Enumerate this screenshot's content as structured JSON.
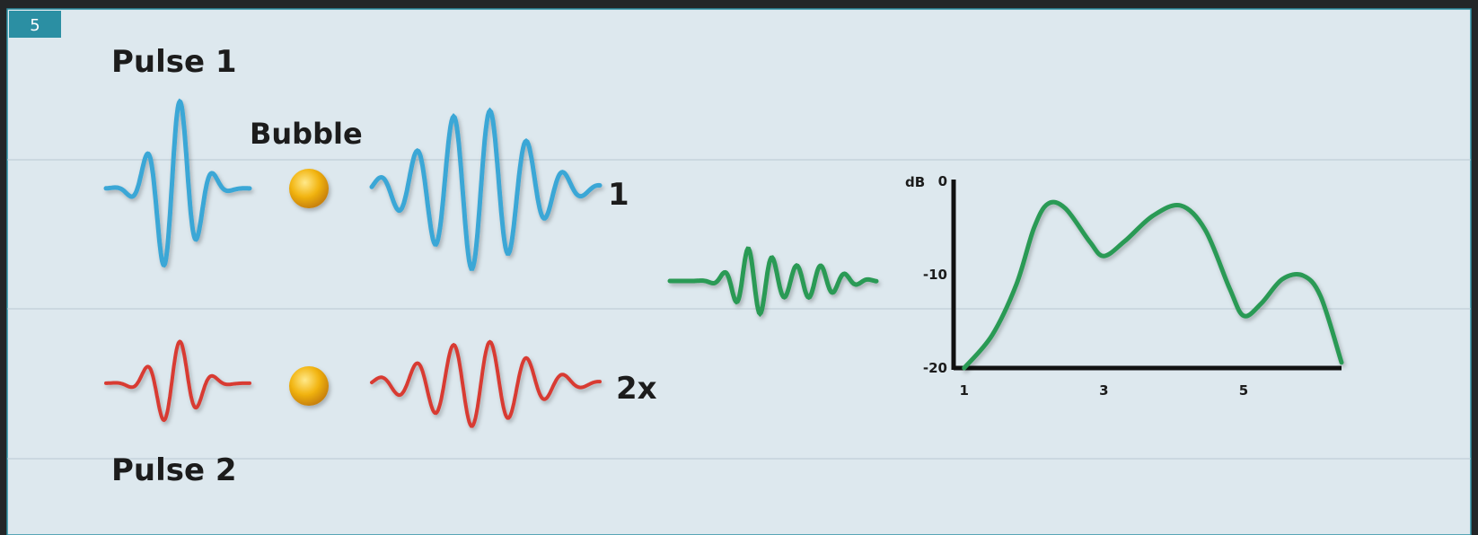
{
  "badge": {
    "text": "5",
    "color": "#2b8fa3"
  },
  "labels": {
    "pulse1": "Pulse 1",
    "pulse2": "Pulse 2",
    "bubble": "Bubble",
    "echo1_factor": "1",
    "echo2_factor": "2x"
  },
  "colors": {
    "pulse1": "#3aa7d6",
    "pulse2": "#d83a33",
    "difference": "#2a9a55",
    "bubble": "#f2b512",
    "background": "#dde8ee"
  },
  "chart_data": {
    "type": "line",
    "ylabel": "dB",
    "x_ticks": [
      "1",
      "3",
      "5"
    ],
    "y_ticks": [
      "0",
      "-10",
      "-20"
    ],
    "xlim": [
      0.85,
      6.4
    ],
    "ylim": [
      -20,
      0
    ],
    "series": [
      {
        "points": [
          [
            1.0,
            -20
          ],
          [
            1.4,
            -16.5
          ],
          [
            1.75,
            -11
          ],
          [
            2.0,
            -5
          ],
          [
            2.2,
            -2.4
          ],
          [
            2.45,
            -2.9
          ],
          [
            2.8,
            -6.5
          ],
          [
            3.0,
            -8.0
          ],
          [
            3.3,
            -6.4
          ],
          [
            3.7,
            -3.7
          ],
          [
            4.1,
            -2.6
          ],
          [
            4.45,
            -5.2
          ],
          [
            4.8,
            -11.5
          ],
          [
            5.0,
            -14.4
          ],
          [
            5.25,
            -13.1
          ],
          [
            5.55,
            -10.5
          ],
          [
            5.85,
            -10.1
          ],
          [
            6.1,
            -12.3
          ],
          [
            6.4,
            -19.4
          ]
        ]
      }
    ]
  }
}
